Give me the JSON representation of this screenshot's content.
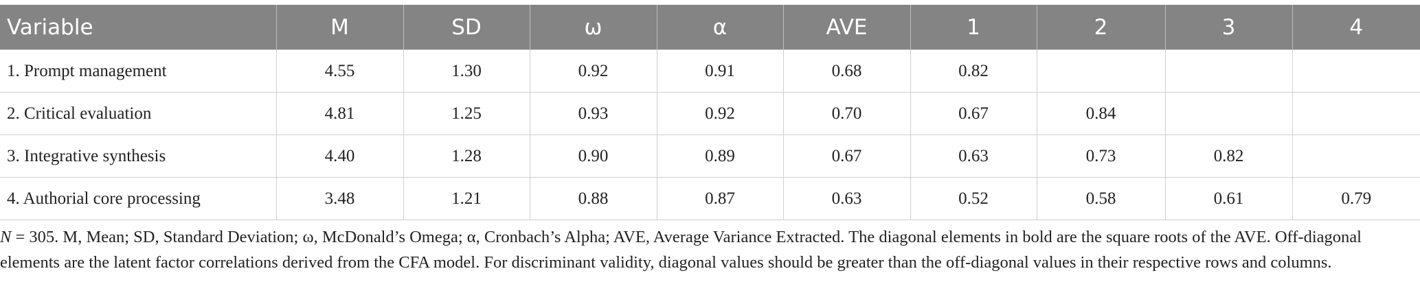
{
  "table": {
    "header": [
      "Variable",
      "M",
      "SD",
      "ω",
      "α",
      "AVE",
      "1",
      "2",
      "3",
      "4"
    ],
    "rows": [
      [
        "1. Prompt management",
        "4.55",
        "1.30",
        "0.92",
        "0.91",
        "0.68",
        "0.82",
        null,
        null,
        null
      ],
      [
        "2. Critical evaluation",
        "4.81",
        "1.25",
        "0.93",
        "0.92",
        "0.70",
        "0.67",
        "0.84",
        null,
        null
      ],
      [
        "3. Integrative synthesis",
        "4.40",
        "1.28",
        "0.90",
        "0.89",
        "0.67",
        "0.63",
        "0.73",
        "0.82",
        null
      ],
      [
        "4. Authorial core processing",
        "3.48",
        "1.21",
        "0.88",
        "0.87",
        "0.63",
        "0.52",
        "0.58",
        "0.61",
        "0.79"
      ]
    ]
  },
  "note": {
    "lead": "N",
    "text": "= 305. M, Mean; SD, Standard Deviation; ω, McDonald’s Omega; α, Cronbach’s Alpha; AVE, Average Variance Extracted. The diagonal elements in bold are the square roots of the AVE. Off-diagonal elements are the latent factor correlations derived from the CFA model. For discriminant validity, diagonal values should be greater than the off-diagonal values in their respective rows and columns."
  }
}
